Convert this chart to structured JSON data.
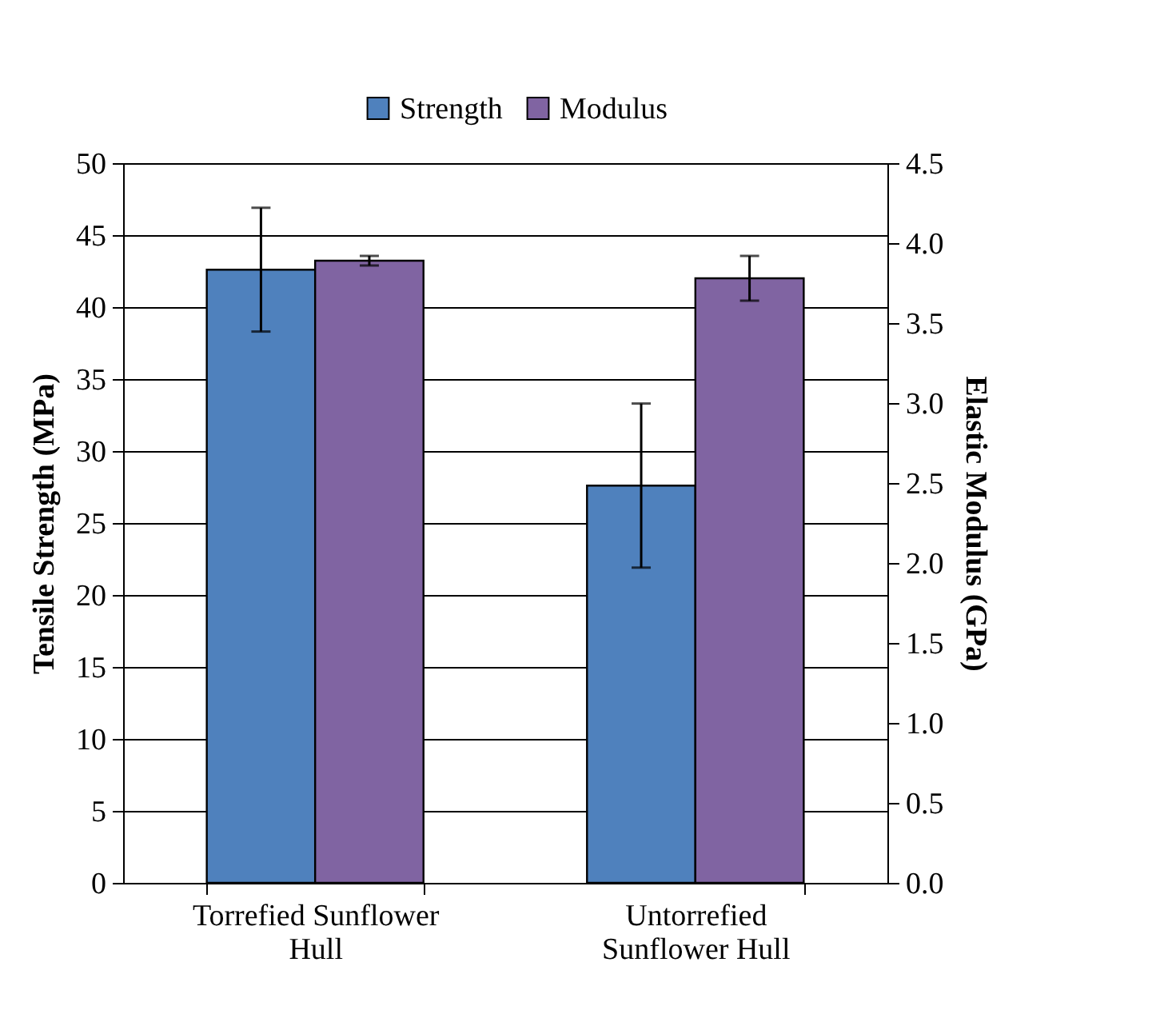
{
  "chart_data": {
    "type": "bar",
    "xlabel": null,
    "categories": [
      "Torrefied Sunflower Hull",
      "Untorrefied Sunflower Hull"
    ],
    "series": [
      {
        "name": "Strength",
        "color": "#4f81bd",
        "values": [
          42.6,
          27.6
        ],
        "errors": [
          4.3,
          5.7
        ]
      },
      {
        "name": "Modulus",
        "color": "#8064a2",
        "values": [
          3.89,
          3.78
        ],
        "errors": [
          0.03,
          0.14
        ],
        "axis": "y2"
      }
    ],
    "ylabel": "Tensile Strength (MPa)",
    "y2label": "Elastic Modulus (GPa)",
    "ylim": [
      0,
      50
    ],
    "yticks": [
      0,
      5,
      10,
      15,
      20,
      25,
      30,
      35,
      40,
      45,
      50
    ],
    "y2lim": [
      0,
      4.5
    ],
    "y2ticks": [
      {
        "value": 0,
        "label": "0.0"
      },
      {
        "value": 0.5,
        "label": "0.5"
      },
      {
        "value": 1,
        "label": "1.0"
      },
      {
        "value": 1.5,
        "label": "1.5"
      },
      {
        "value": 2,
        "label": "2.0"
      },
      {
        "value": 2.5,
        "label": "2.5"
      },
      {
        "value": 3,
        "label": "3.0"
      },
      {
        "value": 3.5,
        "label": "3.5"
      },
      {
        "value": 4,
        "label": "4.0"
      },
      {
        "value": 4.5,
        "label": "4.5"
      }
    ],
    "grid": "y",
    "legend": "top"
  }
}
